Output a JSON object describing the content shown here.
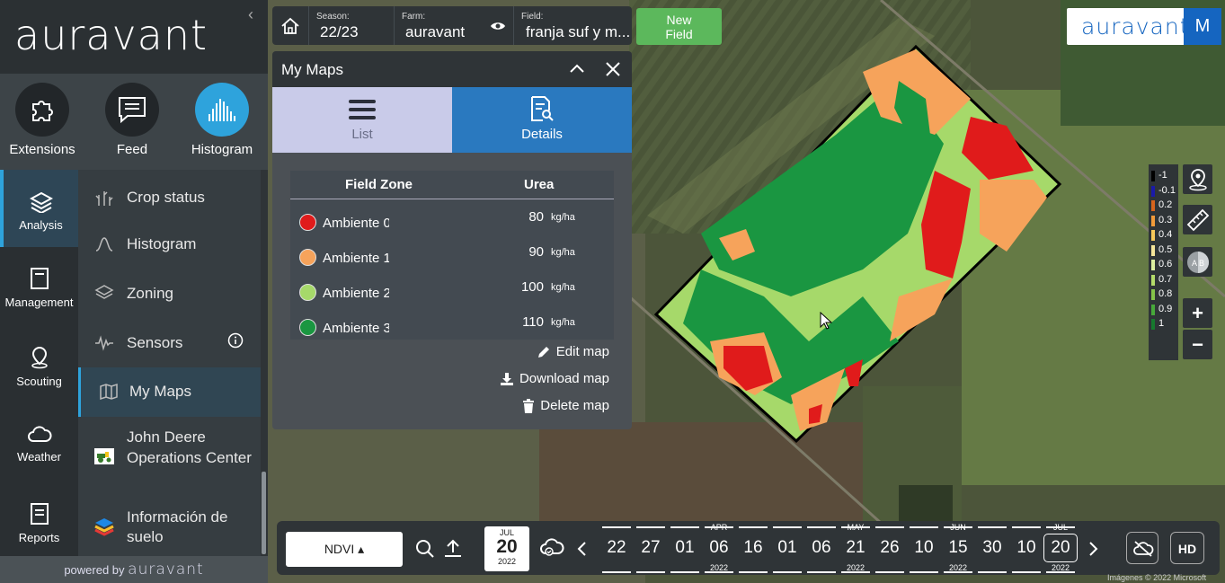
{
  "sidebar": {
    "logo": "auravant",
    "collapse_icon": "chevron-left",
    "tools": [
      {
        "label": "Extensions",
        "icon": "puzzle-icon"
      },
      {
        "label": "Feed",
        "icon": "chat-icon"
      },
      {
        "label": "Histogram",
        "icon": "histogram-icon"
      }
    ],
    "nav": [
      {
        "label": "Analysis",
        "icon": "layers-icon"
      },
      {
        "label": "Management",
        "icon": "clipboard-icon"
      },
      {
        "label": "Scouting",
        "icon": "pin-icon"
      },
      {
        "label": "Weather",
        "icon": "cloud-icon"
      },
      {
        "label": "Reports",
        "icon": "report-icon"
      }
    ],
    "submenu": [
      {
        "label": "Crop status"
      },
      {
        "label": "Histogram"
      },
      {
        "label": "Zoning"
      },
      {
        "label": "Sensors"
      },
      {
        "label": "My Maps"
      },
      {
        "label": "John Deere Operations Center"
      },
      {
        "label": "Información de suelo"
      }
    ],
    "powered_prefix": "powered by",
    "powered_brand": "auravant"
  },
  "topbar": {
    "season_label": "Season:",
    "season_value": "22/23",
    "farm_label": "Farm:",
    "farm_value": "auravant",
    "field_label": "Field:",
    "field_value": "franja suf y m..."
  },
  "new_field_label_1": "New",
  "new_field_label_2": "Field",
  "brand": {
    "name": "auravant",
    "user_initial": "M"
  },
  "panel": {
    "title": "My Maps",
    "tabs": [
      {
        "label": "List"
      },
      {
        "label": "Details"
      }
    ],
    "table": {
      "col_zone": "Field Zone",
      "col_urea": "Urea",
      "rows": [
        {
          "zone": "Ambiente 0",
          "color": "#e01b1b",
          "value": "80",
          "unit": "kg/ha"
        },
        {
          "zone": "Ambiente 1",
          "color": "#f6a35b",
          "value": "90",
          "unit": "kg/ha"
        },
        {
          "zone": "Ambiente 2",
          "color": "#a6d96a",
          "value": "100",
          "unit": "kg/ha"
        },
        {
          "zone": "Ambiente 3",
          "color": "#1a9641",
          "value": "110",
          "unit": "kg/ha"
        }
      ]
    },
    "actions": {
      "edit": "Edit map",
      "download": "Download map",
      "delete": "Delete map"
    }
  },
  "legend": [
    {
      "label": "-1",
      "color": "#000000"
    },
    {
      "label": "-0.1",
      "color": "#1a1aa8"
    },
    {
      "label": "0.2",
      "color": "#d7641d"
    },
    {
      "label": "0.3",
      "color": "#f29b3a"
    },
    {
      "label": "0.4",
      "color": "#f7c85a"
    },
    {
      "label": "0.5",
      "color": "#f5e59a"
    },
    {
      "label": "0.6",
      "color": "#dcefa0"
    },
    {
      "label": "0.7",
      "color": "#b4db6a"
    },
    {
      "label": "0.8",
      "color": "#85c44a"
    },
    {
      "label": "0.9",
      "color": "#47a83a"
    },
    {
      "label": "1",
      "color": "#16792e"
    }
  ],
  "map_controls": {
    "zoom_in": "+",
    "zoom_out": "−",
    "compare": "A B"
  },
  "timeline": {
    "index_label": "NDVI",
    "selected": {
      "month": "JUL",
      "day": "20",
      "year": "2022"
    },
    "dates": [
      {
        "day": "22",
        "month": "",
        "year": ""
      },
      {
        "day": "27",
        "month": "",
        "year": ""
      },
      {
        "day": "01",
        "month": "",
        "year": ""
      },
      {
        "day": "06",
        "month": "APR",
        "year": "2022"
      },
      {
        "day": "16",
        "month": "",
        "year": ""
      },
      {
        "day": "01",
        "month": "",
        "year": ""
      },
      {
        "day": "06",
        "month": "",
        "year": ""
      },
      {
        "day": "21",
        "month": "MAY",
        "year": "2022"
      },
      {
        "day": "26",
        "month": "",
        "year": ""
      },
      {
        "day": "10",
        "month": "",
        "year": ""
      },
      {
        "day": "15",
        "month": "JUN",
        "year": "2022"
      },
      {
        "day": "30",
        "month": "",
        "year": ""
      },
      {
        "day": "10",
        "month": "",
        "year": ""
      },
      {
        "day": "20",
        "month": "JUL",
        "year": "2022"
      }
    ],
    "hd_label": "HD"
  },
  "credit": "Imágenes © 2022 Microsoft"
}
